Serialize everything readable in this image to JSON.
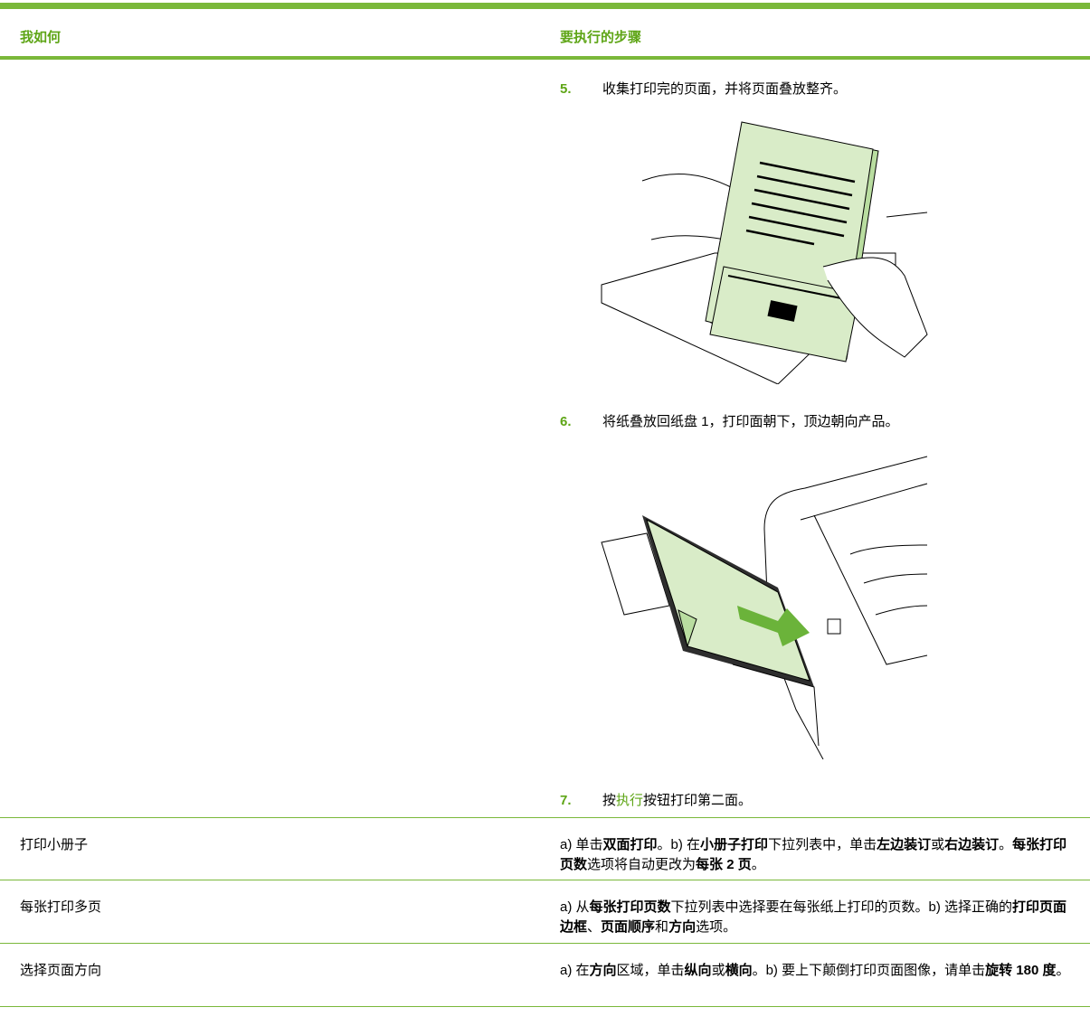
{
  "header": {
    "col1": "我如何",
    "col2": "要执行的步骤"
  },
  "rows": [
    {
      "steps": [
        {
          "number": "5.",
          "runs": [
            {
              "text": "收集打印完的页面，并将页面叠放整齐。"
            }
          ]
        },
        {
          "number": "6.",
          "runs": [
            {
              "text": "将纸叠放回纸盘 1，打印面朝下，顶边朝向产品。"
            }
          ]
        },
        {
          "number": "7.",
          "runs": [
            {
              "text": "按"
            },
            {
              "text": "执行",
              "link": true
            },
            {
              "text": "按钮打印第二面。"
            }
          ]
        }
      ]
    },
    {
      "task": "打印小册子",
      "runs": [
        {
          "text": "a) 单击"
        },
        {
          "text": "双面打印",
          "bold": true
        },
        {
          "text": "。b) 在"
        },
        {
          "text": "小册子打印",
          "bold": true
        },
        {
          "text": "下拉列表中，单击"
        },
        {
          "text": "左边装订",
          "bold": true
        },
        {
          "text": "或"
        },
        {
          "text": "右边装订",
          "bold": true
        },
        {
          "text": "。"
        },
        {
          "text": "每张打印页数",
          "bold": true
        },
        {
          "text": "选项将自动更改为"
        },
        {
          "text": "每张 2 页",
          "bold": true
        },
        {
          "text": "。"
        }
      ]
    },
    {
      "task": "每张打印多页",
      "runs": [
        {
          "text": "a) 从"
        },
        {
          "text": "每张打印页数",
          "bold": true
        },
        {
          "text": "下拉列表中选择要在每张纸上打印的页数。b) 选择正确的"
        },
        {
          "text": "打印页面边框",
          "bold": true
        },
        {
          "text": "、"
        },
        {
          "text": "页面顺序",
          "bold": true
        },
        {
          "text": "和"
        },
        {
          "text": "方向",
          "bold": true
        },
        {
          "text": "选项。"
        }
      ]
    },
    {
      "task": "选择页面方向",
      "runs": [
        {
          "text": "a) 在"
        },
        {
          "text": "方向",
          "bold": true
        },
        {
          "text": "区域，单击"
        },
        {
          "text": "纵向",
          "bold": true
        },
        {
          "text": "或"
        },
        {
          "text": "横向",
          "bold": true
        },
        {
          "text": "。b) 要上下颠倒打印页面图像，请单击"
        },
        {
          "text": "旋转 180 度",
          "bold": true
        },
        {
          "text": "。"
        }
      ]
    }
  ]
}
